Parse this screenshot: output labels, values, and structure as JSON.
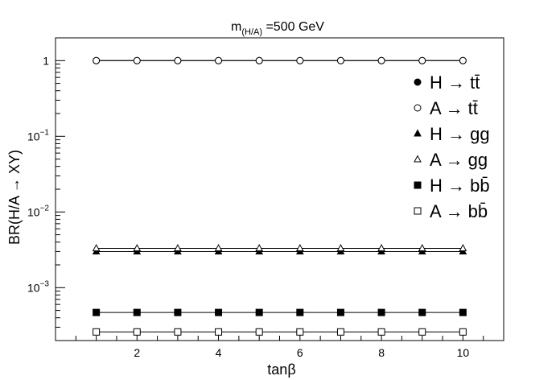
{
  "chart_data": {
    "type": "line",
    "title_main": "m",
    "title_sub": "(H/A)",
    "title_rest": " =500 GeV",
    "xlabel": "tanβ",
    "ylabel": "BR(H/A → XY)",
    "xlim": [
      0,
      11
    ],
    "ylim": [
      0.0002,
      2
    ],
    "yscale": "log",
    "grid": false,
    "legend_position": "top-right",
    "x": [
      1,
      2,
      3,
      4,
      5,
      6,
      7,
      8,
      9,
      10
    ],
    "x_ticks": [
      2,
      4,
      6,
      8,
      10
    ],
    "y_ticks": [
      {
        "value": 1,
        "base": "1",
        "exp": ""
      },
      {
        "value": 0.1,
        "base": "10",
        "exp": "−1"
      },
      {
        "value": 0.01,
        "base": "10",
        "exp": "−2"
      },
      {
        "value": 0.001,
        "base": "10",
        "exp": "−3"
      }
    ],
    "series": [
      {
        "name": "H → tt̄",
        "marker": "circle-filled",
        "values": [
          1,
          1,
          1,
          1,
          1,
          1,
          1,
          1,
          1,
          1
        ]
      },
      {
        "name": "A → tt̄",
        "marker": "circle-open",
        "values": [
          1,
          1,
          1,
          1,
          1,
          1,
          1,
          1,
          1,
          1
        ]
      },
      {
        "name": "H → gg",
        "marker": "triangle-filled",
        "values": [
          0.003,
          0.003,
          0.003,
          0.003,
          0.003,
          0.003,
          0.003,
          0.003,
          0.003,
          0.003
        ]
      },
      {
        "name": "A → gg",
        "marker": "triangle-open",
        "values": [
          0.0033,
          0.0033,
          0.0033,
          0.0033,
          0.0033,
          0.0033,
          0.0033,
          0.0033,
          0.0033,
          0.0033
        ]
      },
      {
        "name": "H → bb̄",
        "marker": "square-filled",
        "values": [
          0.00047,
          0.00047,
          0.00047,
          0.00047,
          0.00047,
          0.00047,
          0.00047,
          0.00047,
          0.00047,
          0.00047
        ]
      },
      {
        "name": "A → bb̄",
        "marker": "square-open",
        "values": [
          0.00026,
          0.00026,
          0.00026,
          0.00026,
          0.00026,
          0.00026,
          0.00026,
          0.00026,
          0.00026,
          0.00026
        ]
      }
    ]
  }
}
